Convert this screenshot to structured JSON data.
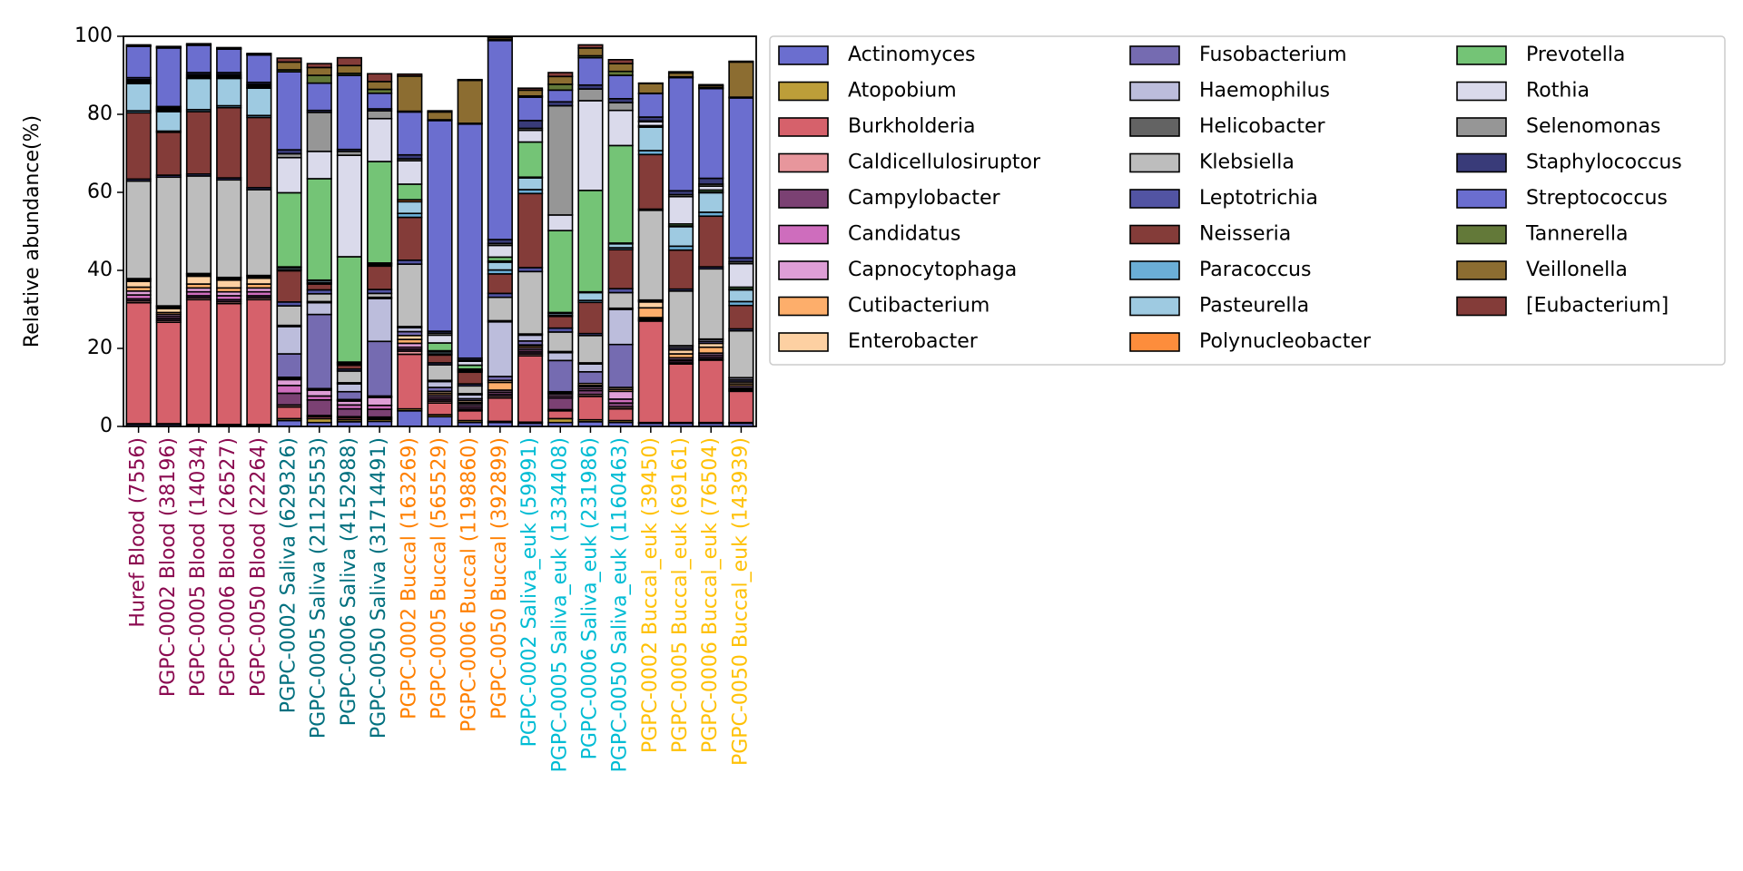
{
  "chart_data": {
    "type": "bar",
    "stacked": true,
    "ylabel": "Relative abundance(%)",
    "ylim": [
      0,
      100
    ],
    "yticks": [
      "0",
      "20",
      "40",
      "60",
      "80",
      "100"
    ],
    "grid": false,
    "legend_position": "right",
    "categories": [
      {
        "label": "Huref Blood (7556)",
        "color": "#8b0a50"
      },
      {
        "label": "PGPC-0002 Blood (38196)",
        "color": "#8b0a50"
      },
      {
        "label": "PGPC-0005 Blood (14034)",
        "color": "#8b0a50"
      },
      {
        "label": "PGPC-0006 Blood (26527)",
        "color": "#8b0a50"
      },
      {
        "label": "PGPC-0050 Blood (22264)",
        "color": "#8b0a50"
      },
      {
        "label": "PGPC-0002 Saliva (629326)",
        "color": "#00707f"
      },
      {
        "label": "PGPC-0005 Saliva (21125553)",
        "color": "#00707f"
      },
      {
        "label": "PGPC-0006 Saliva (4152988)",
        "color": "#00707f"
      },
      {
        "label": "PGPC-0050 Saliva (31714491)",
        "color": "#00707f"
      },
      {
        "label": "PGPC-0002 Buccal (163269)",
        "color": "#ff8000"
      },
      {
        "label": "PGPC-0005 Buccal (565529)",
        "color": "#ff8000"
      },
      {
        "label": "PGPC-0006 Buccal (1198860)",
        "color": "#ff8000"
      },
      {
        "label": "PGPC-0050 Buccal (392899)",
        "color": "#ff8000"
      },
      {
        "label": "PGPC-0002 Saliva_euk (59991)",
        "color": "#00bcd4"
      },
      {
        "label": "PGPC-0005 Saliva_euk (1334408)",
        "color": "#00bcd4"
      },
      {
        "label": "PGPC-0006 Saliva_euk (231986)",
        "color": "#00bcd4"
      },
      {
        "label": "PGPC-0050 Saliva_euk (1160463)",
        "color": "#00bcd4"
      },
      {
        "label": "PGPC-0002 Buccal_euk (39450)",
        "color": "#ffc107"
      },
      {
        "label": "PGPC-0005 Buccal_euk (69161)",
        "color": "#ffc107"
      },
      {
        "label": "PGPC-0006 Buccal_euk (76504)",
        "color": "#ffc107"
      },
      {
        "label": "PGPC-0050 Buccal_euk (143939)",
        "color": "#ffc107"
      }
    ],
    "series": [
      {
        "name": "Actinomyces",
        "color": "#6b6ecf",
        "values": [
          0.5,
          0.5,
          0.3,
          0.3,
          0.3,
          1.5,
          1.0,
          1.2,
          1.3,
          4.0,
          2.5,
          1.0,
          1.0,
          0.8,
          1.0,
          1.2,
          1.0,
          0.8,
          0.8,
          0.8,
          0.8
        ]
      },
      {
        "name": "Atopobium",
        "color": "#bd9e39",
        "values": [
          0.2,
          0.2,
          0.2,
          0.2,
          0.2,
          0.5,
          1.0,
          0.5,
          0.5,
          0.5,
          0.5,
          0.5,
          0.3,
          0.3,
          1.0,
          0.5,
          0.5,
          0.2,
          0.2,
          0.2,
          0.2
        ]
      },
      {
        "name": "Burkholderia",
        "color": "#d6616b",
        "values": [
          31.0,
          26.0,
          32.0,
          31.0,
          32.0,
          3.0,
          0.5,
          0.5,
          0.3,
          14.0,
          3.0,
          2.5,
          6.0,
          17.0,
          2.0,
          6.0,
          3.0,
          26.0,
          15.0,
          16.0,
          8.0
        ]
      },
      {
        "name": "Caldicellulosiruptor",
        "color": "#e7969c",
        "values": [
          0.5,
          0.5,
          0.5,
          0.5,
          0.5,
          0.5,
          0.3,
          0.3,
          0.3,
          0.8,
          0.5,
          0.3,
          0.5,
          0.5,
          0.3,
          0.5,
          0.5,
          0.2,
          0.3,
          0.3,
          0.3
        ]
      },
      {
        "name": "Campylobacter",
        "color": "#7b4173",
        "values": [
          0.5,
          0.5,
          0.5,
          0.5,
          0.5,
          3.0,
          4.0,
          2.0,
          2.0,
          0.5,
          0.5,
          0.5,
          0.5,
          0.5,
          3.0,
          1.0,
          1.0,
          0.2,
          0.5,
          0.5,
          0.3
        ]
      },
      {
        "name": "Candidatus",
        "color": "#ce6dbd",
        "values": [
          1.0,
          0.5,
          1.0,
          1.0,
          1.0,
          2.0,
          1.0,
          1.0,
          1.0,
          0.5,
          0.5,
          0.5,
          0.5,
          0.5,
          0.5,
          0.5,
          1.0,
          0.2,
          0.3,
          0.5,
          0.3
        ]
      },
      {
        "name": "Capnocytophaga",
        "color": "#de9ed6",
        "values": [
          1.0,
          0.5,
          1.0,
          1.0,
          1.0,
          1.5,
          1.5,
          1.0,
          2.0,
          1.0,
          0.5,
          0.5,
          0.5,
          0.5,
          0.5,
          0.5,
          2.0,
          0.3,
          0.5,
          0.5,
          0.5
        ]
      },
      {
        "name": "Cutibacterium",
        "color": "#fdae6b",
        "values": [
          1.0,
          0.5,
          1.0,
          1.0,
          1.0,
          0.3,
          0.2,
          0.2,
          0.2,
          1.0,
          0.5,
          0.3,
          2.0,
          0.5,
          0.3,
          0.3,
          0.5,
          2.5,
          1.0,
          1.5,
          0.5
        ]
      },
      {
        "name": "Enterobacter",
        "color": "#fdd0a2",
        "values": [
          1.5,
          1.0,
          2.0,
          2.0,
          1.5,
          0.3,
          0.2,
          0.2,
          0.2,
          1.0,
          0.5,
          0.5,
          0.5,
          0.3,
          0.3,
          0.5,
          0.5,
          1.5,
          1.0,
          1.0,
          0.5
        ]
      },
      {
        "name": "Fusobacterium",
        "color": "#756bb1",
        "values": [
          0.3,
          0.3,
          0.3,
          0.3,
          0.3,
          6.0,
          19.0,
          2.0,
          14.0,
          1.0,
          1.0,
          0.5,
          1.0,
          1.0,
          8.0,
          3.0,
          11.0,
          0.2,
          0.5,
          0.5,
          0.5
        ]
      },
      {
        "name": "Haemophilus",
        "color": "#bcbddc",
        "values": [
          0.3,
          0.3,
          0.3,
          0.3,
          0.3,
          7.0,
          3.0,
          2.0,
          11.0,
          1.0,
          1.5,
          1.0,
          14.0,
          1.5,
          2.0,
          2.0,
          9.0,
          0.2,
          0.5,
          0.5,
          0.5
        ]
      },
      {
        "name": "Helicobacter",
        "color": "#636363",
        "values": [
          0.1,
          0.1,
          0.1,
          0.1,
          0.1,
          0.3,
          0.3,
          0.3,
          0.3,
          0.3,
          0.3,
          0.3,
          0.3,
          0.3,
          0.3,
          0.3,
          0.3,
          0.1,
          0.1,
          0.1,
          0.1
        ]
      },
      {
        "name": "Klebsiella",
        "color": "#bdbdbd",
        "values": [
          25.0,
          33.0,
          25.0,
          25.0,
          22.0,
          5.0,
          2.0,
          3.0,
          1.0,
          16.0,
          4.0,
          2.0,
          6.0,
          16.0,
          5.0,
          7.0,
          4.0,
          23.0,
          14.0,
          18.0,
          12.0
        ]
      },
      {
        "name": "Leptotrichia",
        "color": "#5254a3",
        "values": [
          0.5,
          0.5,
          0.5,
          0.5,
          0.5,
          1.0,
          1.0,
          0.5,
          1.0,
          1.0,
          0.5,
          0.5,
          1.0,
          1.0,
          1.0,
          0.5,
          1.0,
          0.3,
          0.5,
          0.5,
          0.5
        ]
      },
      {
        "name": "Neisseria",
        "color": "#843c39",
        "values": [
          17.0,
          11.0,
          16.0,
          18.0,
          18.0,
          8.0,
          1.5,
          1.0,
          6.0,
          11.0,
          2.0,
          3.0,
          5.0,
          19.0,
          3.0,
          8.0,
          10.0,
          14.0,
          10.0,
          13.0,
          6.0
        ]
      },
      {
        "name": "Paracoccus",
        "color": "#6baed6",
        "values": [
          0.5,
          0.3,
          0.5,
          0.5,
          0.5,
          0.3,
          0.3,
          0.3,
          0.3,
          1.0,
          0.3,
          0.3,
          1.0,
          1.0,
          0.3,
          0.5,
          0.5,
          1.0,
          1.0,
          1.0,
          1.0
        ]
      },
      {
        "name": "Pasteurella",
        "color": "#9ecae1",
        "values": [
          7.0,
          5.0,
          8.0,
          7.0,
          7.0,
          0.5,
          0.5,
          0.3,
          0.3,
          3.0,
          0.5,
          0.3,
          2.0,
          3.0,
          0.5,
          2.0,
          1.0,
          6.0,
          5.0,
          5.0,
          3.0
        ]
      },
      {
        "name": "Polynucleobacter",
        "color": "#fd8d3c",
        "values": [
          0.1,
          0.1,
          0.1,
          0.1,
          0.1,
          0.2,
          0.2,
          0.2,
          0.2,
          0.5,
          0.3,
          0.2,
          0.3,
          0.2,
          0.2,
          0.2,
          0.2,
          0.2,
          0.2,
          0.2,
          0.2
        ]
      },
      {
        "name": "Prevotella",
        "color": "#74c476",
        "values": [
          0.3,
          0.3,
          0.3,
          0.3,
          0.3,
          19.0,
          26.0,
          27.0,
          26.0,
          4.0,
          2.0,
          1.0,
          1.0,
          9.0,
          21.0,
          26.0,
          25.0,
          0.2,
          0.5,
          0.5,
          0.5
        ]
      },
      {
        "name": "Rothia",
        "color": "#dadaeb",
        "values": [
          0.3,
          0.3,
          0.3,
          0.3,
          0.3,
          9.0,
          7.0,
          26.0,
          11.0,
          6.0,
          2.0,
          1.0,
          3.0,
          3.0,
          4.0,
          23.0,
          9.0,
          1.0,
          7.0,
          1.0,
          6.0
        ]
      },
      {
        "name": "Selenomonas",
        "color": "#969696",
        "values": [
          0.3,
          0.3,
          0.3,
          0.3,
          0.3,
          1.0,
          10.0,
          1.0,
          2.0,
          0.5,
          0.5,
          0.3,
          0.5,
          0.5,
          28.0,
          3.0,
          2.0,
          0.2,
          0.5,
          0.5,
          0.5
        ]
      },
      {
        "name": "Staphylococcus",
        "color": "#393b79",
        "values": [
          0.5,
          0.3,
          0.5,
          0.5,
          0.5,
          1.0,
          0.5,
          0.5,
          0.5,
          1.0,
          0.5,
          0.5,
          1.0,
          2.0,
          1.0,
          1.0,
          1.0,
          1.0,
          1.0,
          1.5,
          1.0
        ]
      },
      {
        "name": "Streptococcus",
        "color": "#6b6ecf",
        "values": [
          8.0,
          15.0,
          7.0,
          6.0,
          7.0,
          20.0,
          7.0,
          19.0,
          4.0,
          11.0,
          54.0,
          60.0,
          51.0,
          6.0,
          3.0,
          7.0,
          6.0,
          6.0,
          29.0,
          23.0,
          41.0
        ]
      },
      {
        "name": "Tannerella",
        "color": "#637939",
        "values": [
          0.1,
          0.1,
          0.1,
          0.1,
          0.1,
          0.5,
          2.0,
          0.5,
          1.0,
          0.2,
          0.2,
          0.2,
          0.2,
          0.3,
          1.5,
          0.5,
          1.0,
          0.1,
          0.2,
          0.2,
          0.2
        ]
      },
      {
        "name": "Veillonella",
        "color": "#8c6d31",
        "values": [
          0.2,
          0.2,
          0.2,
          0.2,
          0.2,
          2.0,
          2.0,
          2.0,
          2.0,
          9.0,
          2.0,
          11.0,
          0.5,
          1.5,
          2.0,
          2.0,
          2.0,
          2.5,
          1.0,
          0.5,
          9.0
        ]
      },
      {
        "name": "[Eubacterium]",
        "color": "#843c39",
        "values": [
          0.1,
          0.1,
          0.1,
          0.1,
          0.1,
          1.0,
          1.0,
          2.0,
          2.0,
          0.5,
          0.3,
          0.2,
          0.3,
          0.5,
          1.0,
          0.8,
          1.0,
          0.1,
          0.3,
          0.3,
          0.2
        ]
      }
    ]
  }
}
